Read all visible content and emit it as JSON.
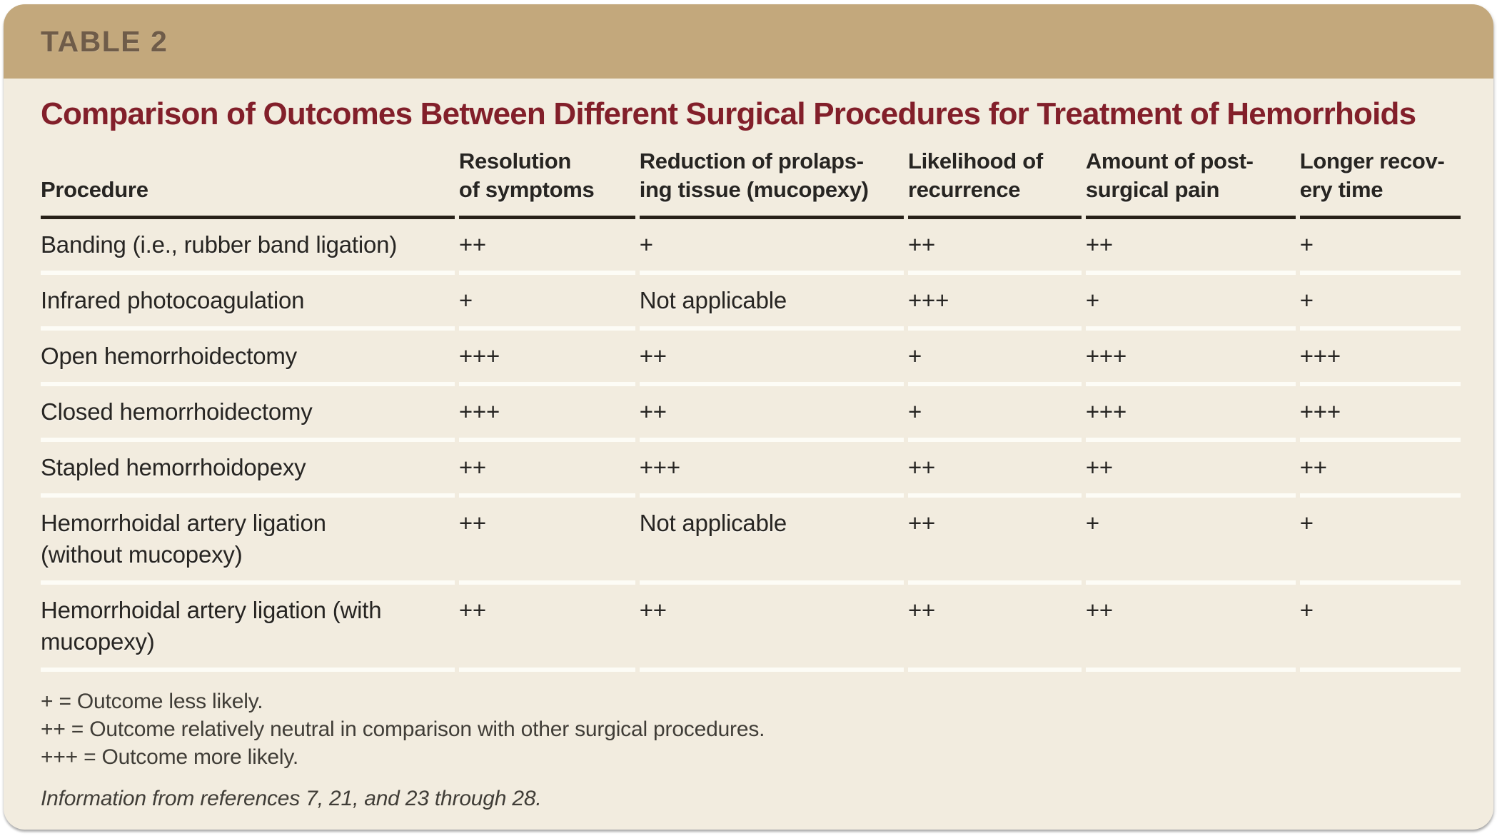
{
  "table_label": "TABLE 2",
  "title": "Comparison of Outcomes Between Different Surgical Procedures for Treatment of Hemorrhoids",
  "table": {
    "columns": [
      "Procedure",
      "Resolution\nof symptoms",
      "Reduction of prolaps-\ning tissue (mucopexy)",
      "Likelihood of\nrecurrence",
      "Amount of post-\nsurgical pain",
      "Longer recov-\nery time"
    ],
    "rows": [
      {
        "procedure": "Banding (i.e., rubber band ligation)",
        "values": [
          "++",
          "+",
          "++",
          "++",
          "+"
        ]
      },
      {
        "procedure": "Infrared photocoagulation",
        "values": [
          "+",
          "Not applicable",
          "+++",
          "+",
          "+"
        ]
      },
      {
        "procedure": "Open hemorrhoidectomy",
        "values": [
          "+++",
          "++",
          "+",
          "+++",
          "+++"
        ]
      },
      {
        "procedure": "Closed hemorrhoidectomy",
        "values": [
          "+++",
          "++",
          "+",
          "+++",
          "+++"
        ]
      },
      {
        "procedure": "Stapled hemorrhoidopexy",
        "values": [
          "++",
          "+++",
          "++",
          "++",
          "++"
        ]
      },
      {
        "procedure": "Hemorrhoidal artery ligation\n(without mucopexy)",
        "values": [
          "++",
          "Not applicable",
          "++",
          "+",
          "+"
        ]
      },
      {
        "procedure": "Hemorrhoidal artery ligation (with\nmucopexy)",
        "values": [
          "++",
          "++",
          "++",
          "++",
          "+"
        ]
      }
    ]
  },
  "footnotes": [
    "+ = Outcome less likely.",
    "++ = Outcome relatively neutral in comparison with other surgical procedures.",
    "+++ = Outcome more likely."
  ],
  "source_note": "Information from references 7, 21, and 23 through 28.",
  "colors": {
    "band_bg": "#c3a87c",
    "band_label": "#6f5c49",
    "card_bg": "#f2ecdf",
    "title": "#821f2a",
    "text": "#272522",
    "rule": "#272018",
    "row_divider": "#fdfcf6",
    "footnote_text": "#403d37"
  }
}
